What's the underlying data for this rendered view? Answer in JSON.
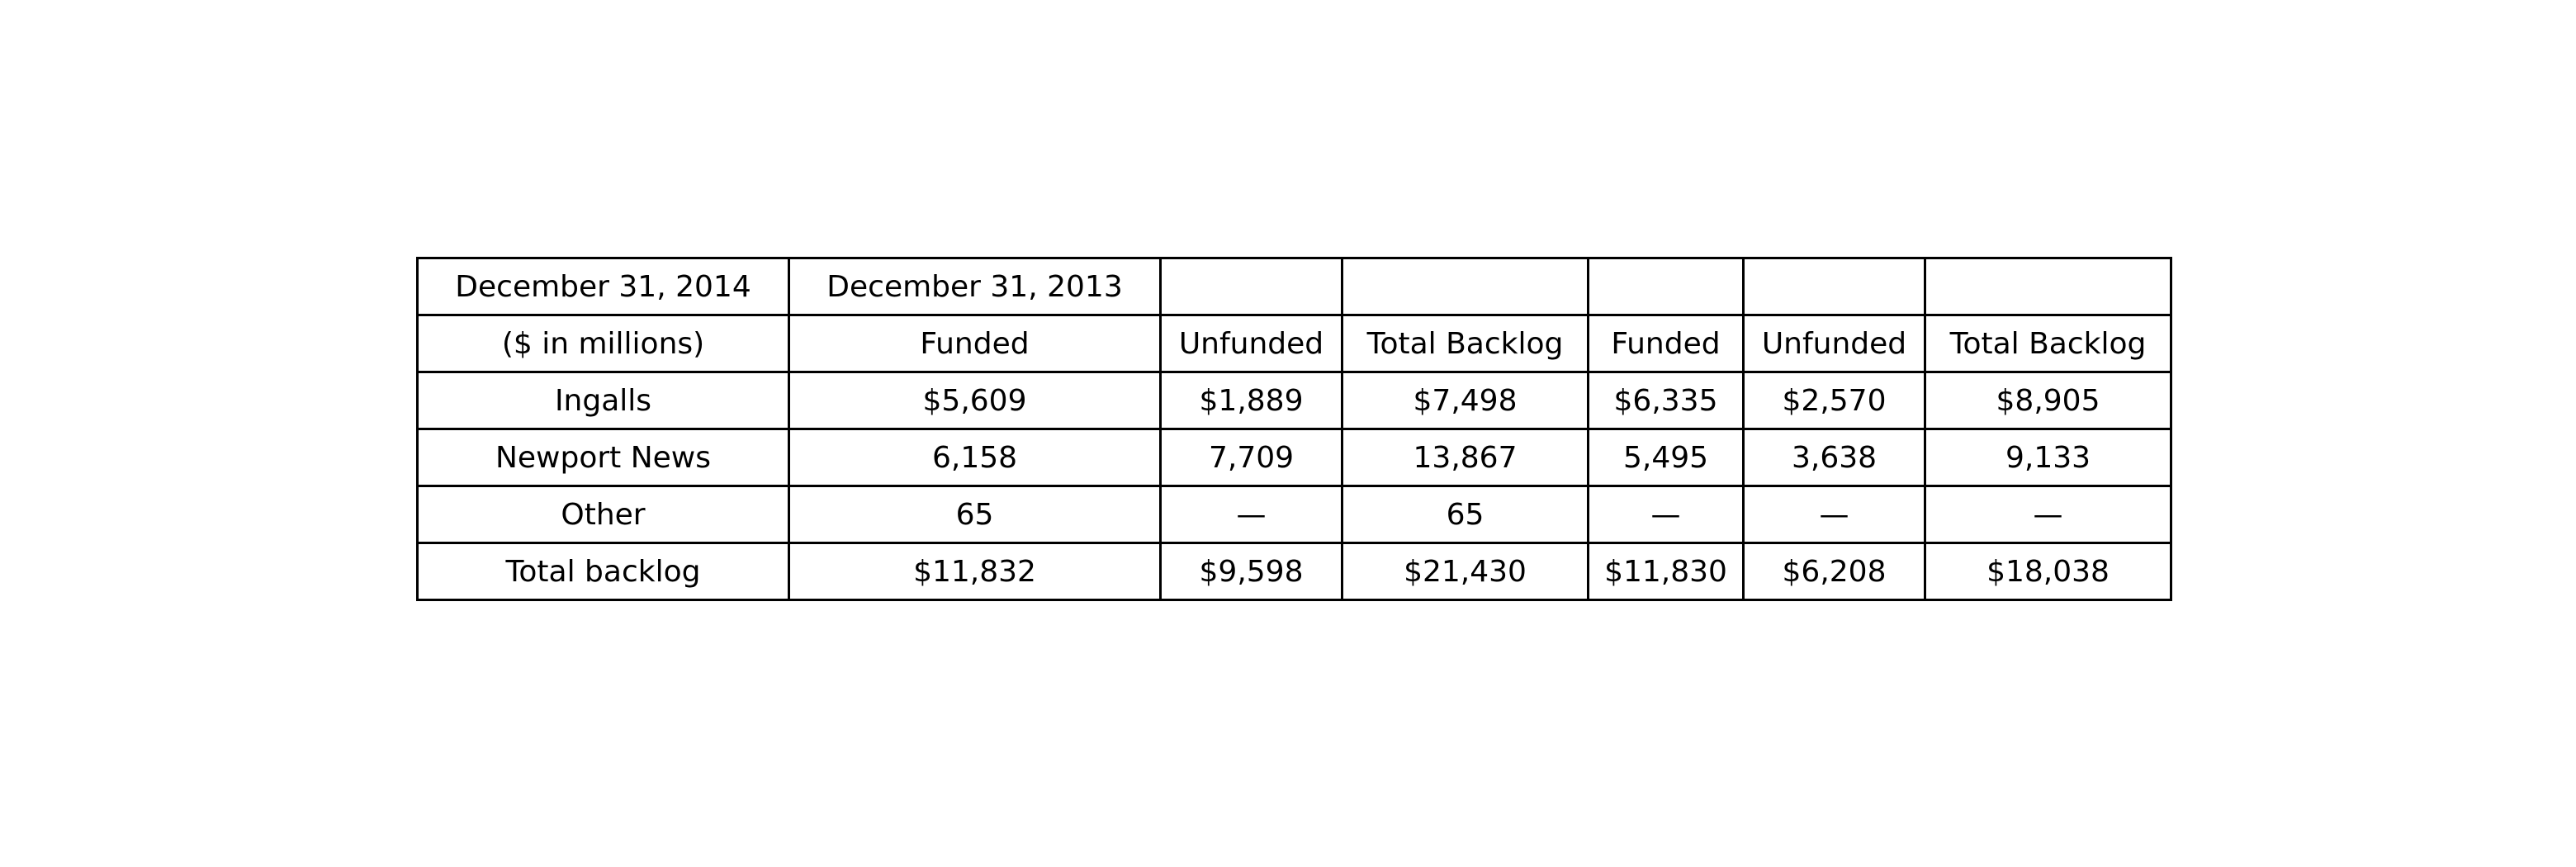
{
  "chart_data": {
    "type": "table",
    "rows": [
      [
        "December 31, 2014",
        "December 31, 2013",
        "",
        "",
        "",
        "",
        ""
      ],
      [
        "($ in millions)",
        "Funded",
        "Unfunded",
        "Total Backlog",
        "Funded",
        "Unfunded",
        "Total Backlog"
      ],
      [
        "Ingalls",
        "$5,609",
        "$1,889",
        "$7,498",
        "$6,335",
        "$2,570",
        "$8,905"
      ],
      [
        "Newport News",
        "6,158",
        "7,709",
        "13,867",
        "5,495",
        "3,638",
        "9,133"
      ],
      [
        "Other",
        "65",
        "—",
        "65",
        "—",
        "—",
        "—"
      ],
      [
        "Total backlog",
        "$11,832",
        "$9,598",
        "$21,430",
        "$11,830",
        "$6,208",
        "$18,038"
      ]
    ]
  }
}
